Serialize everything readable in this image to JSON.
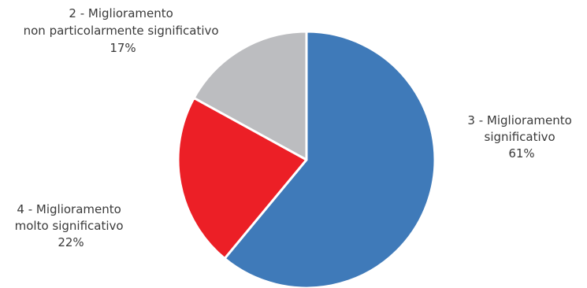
{
  "chart_data": {
    "type": "pie",
    "slices": [
      {
        "category": "3 - Miglioramento significativo",
        "value": 61,
        "value_label": "61%",
        "label_lines": [
          "3 - Miglioramento",
          "significativo"
        ],
        "color": "#3f7ab9"
      },
      {
        "category": "4 - Miglioramento molto significativo",
        "value": 22,
        "value_label": "22%",
        "label_lines": [
          "4 - Miglioramento",
          "molto significativo"
        ],
        "color": "#ec1f26"
      },
      {
        "category": "2 - Miglioramento non particolarmente significativo",
        "value": 17,
        "value_label": "17%",
        "label_lines": [
          "2 - Miglioramento",
          "non particolarmente significativo"
        ],
        "color": "#bcbdc0"
      }
    ],
    "start_angle_deg": 0,
    "direction": "clockwise",
    "legend": "none"
  }
}
